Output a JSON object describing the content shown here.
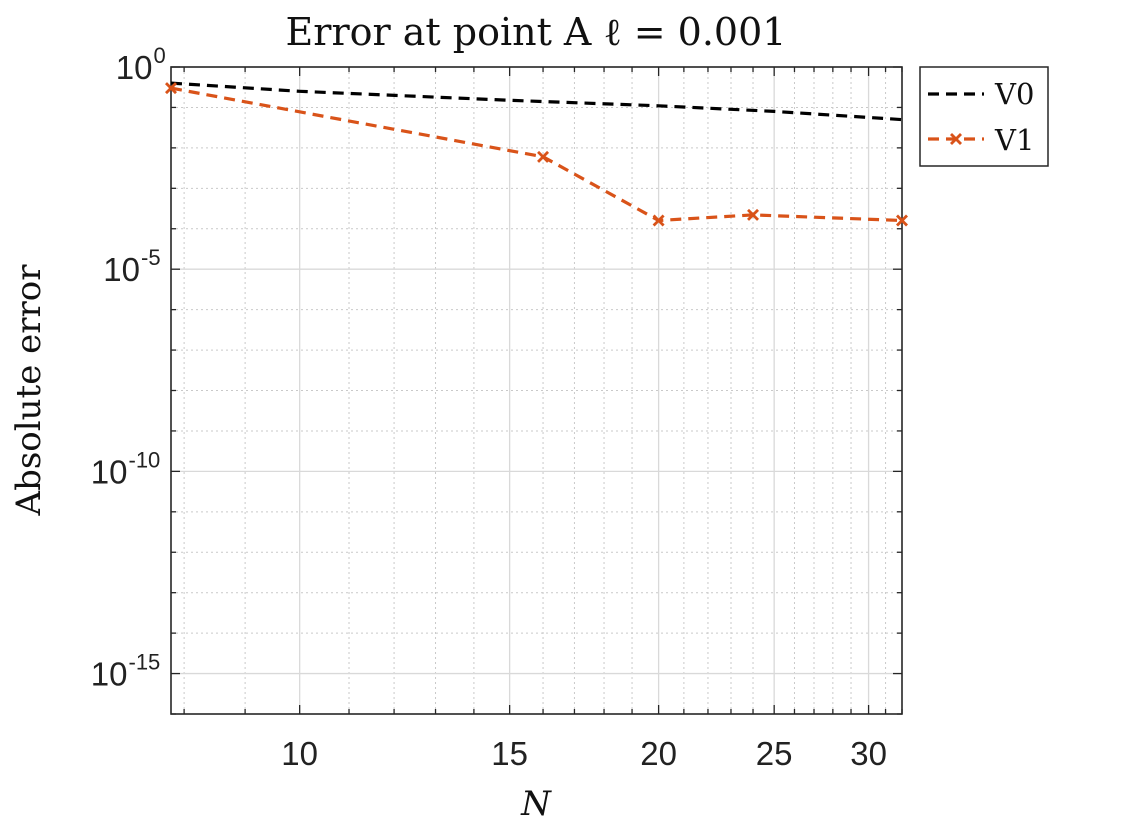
{
  "chart_data": {
    "type": "line",
    "title": "Error at point A ℓ = 0.001",
    "xlabel": "N",
    "ylabel": "Absolute error",
    "xscale": "log",
    "yscale": "log",
    "xlim": [
      7.8,
      32
    ],
    "ylim": [
      1e-16,
      1
    ],
    "xticks": [
      10,
      15,
      20,
      25,
      30
    ],
    "yticks": [
      {
        "base": "10",
        "exp": "0",
        "value": 1
      },
      {
        "base": "10",
        "exp": "-5",
        "value": 1e-05
      },
      {
        "base": "10",
        "exp": "-10",
        "value": 1e-10
      },
      {
        "base": "10",
        "exp": "-15",
        "value": 1e-15
      }
    ],
    "grid": true,
    "legend_location": "outside-top-right",
    "series": [
      {
        "name": "V0",
        "color": "#000000",
        "style": "dashed",
        "marker": "none",
        "x": [
          7.8,
          10,
          15,
          20,
          25,
          32
        ],
        "y": [
          0.4,
          0.25,
          0.15,
          0.11,
          0.08,
          0.05
        ]
      },
      {
        "name": "V1",
        "color": "#D95319",
        "style": "dashed",
        "marker": "x",
        "x": [
          7.8,
          16,
          20,
          24,
          32
        ],
        "y": [
          0.3,
          0.006,
          0.00016,
          0.00022,
          0.00016
        ]
      }
    ]
  }
}
